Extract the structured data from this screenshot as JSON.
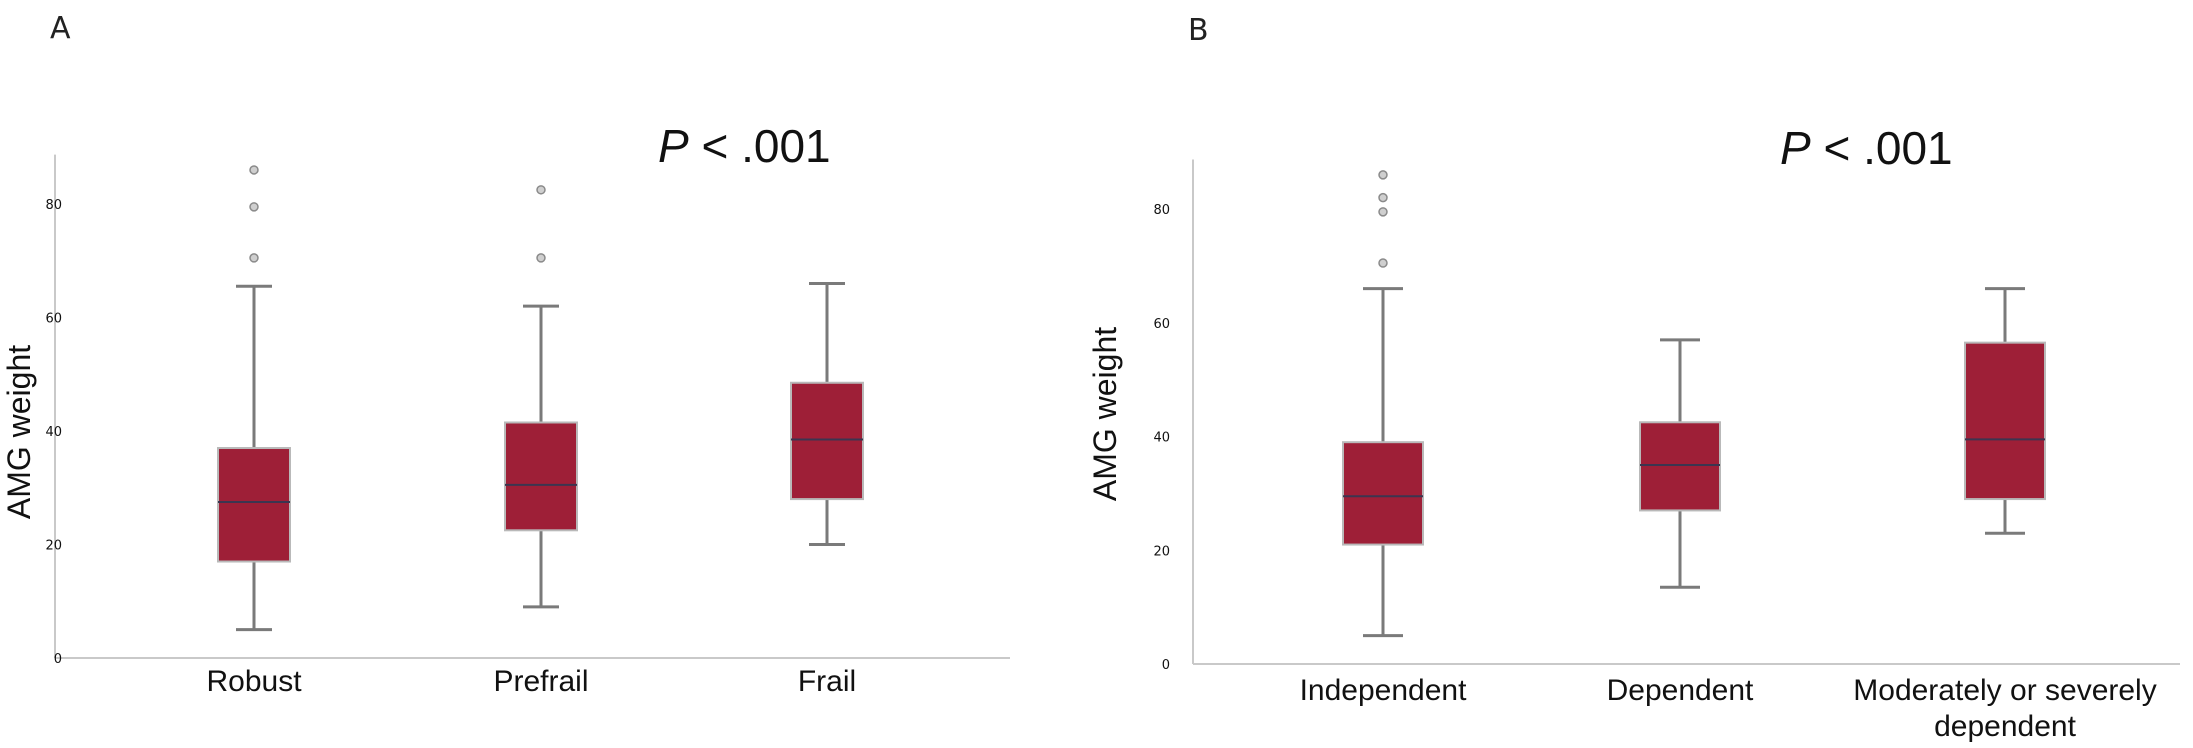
{
  "chart_data": [
    {
      "type": "box",
      "panel_label": "A",
      "annotation": {
        "italic": "P",
        "rest": " < .001"
      },
      "ylabel": "AMG weight",
      "ylim": [
        0,
        88
      ],
      "yticks": [
        "0",
        "20",
        "40",
        "60",
        "80"
      ],
      "categories": [
        "Robust",
        "Prefrail",
        "Frail"
      ],
      "box_color": "#9e1f37",
      "boxes": [
        {
          "whisker_low": 5,
          "q1": 17,
          "median": 27.5,
          "q3": 37,
          "whisker_high": 65.5,
          "outliers": [
            70.5,
            79.5,
            86
          ]
        },
        {
          "whisker_low": 9,
          "q1": 22.5,
          "median": 30.5,
          "q3": 41.5,
          "whisker_high": 62,
          "outliers": [
            70.5,
            82.5
          ]
        },
        {
          "whisker_low": 20,
          "q1": 28,
          "median": 38.5,
          "q3": 48.5,
          "whisker_high": 66,
          "outliers": []
        }
      ]
    },
    {
      "type": "box",
      "panel_label": "B",
      "annotation": {
        "italic": "P",
        "rest": " < .001"
      },
      "ylabel": "AMG weight",
      "ylim": [
        0,
        88
      ],
      "yticks": [
        "0",
        "20",
        "40",
        "60",
        "80"
      ],
      "categories": [
        "Independent",
        "Dependent",
        [
          "Moderately or severely",
          "dependent"
        ]
      ],
      "box_color": "#9e1f37",
      "boxes": [
        {
          "whisker_low": 5,
          "q1": 21,
          "median": 29.5,
          "q3": 39,
          "whisker_high": 66,
          "outliers": [
            70.5,
            79.5,
            82,
            86
          ]
        },
        {
          "whisker_low": 13.5,
          "q1": 27,
          "median": 35,
          "q3": 42.5,
          "whisker_high": 57,
          "outliers": []
        },
        {
          "whisker_low": 23,
          "q1": 29,
          "median": 39.5,
          "q3": 56.5,
          "whisker_high": 66,
          "outliers": []
        }
      ]
    }
  ]
}
